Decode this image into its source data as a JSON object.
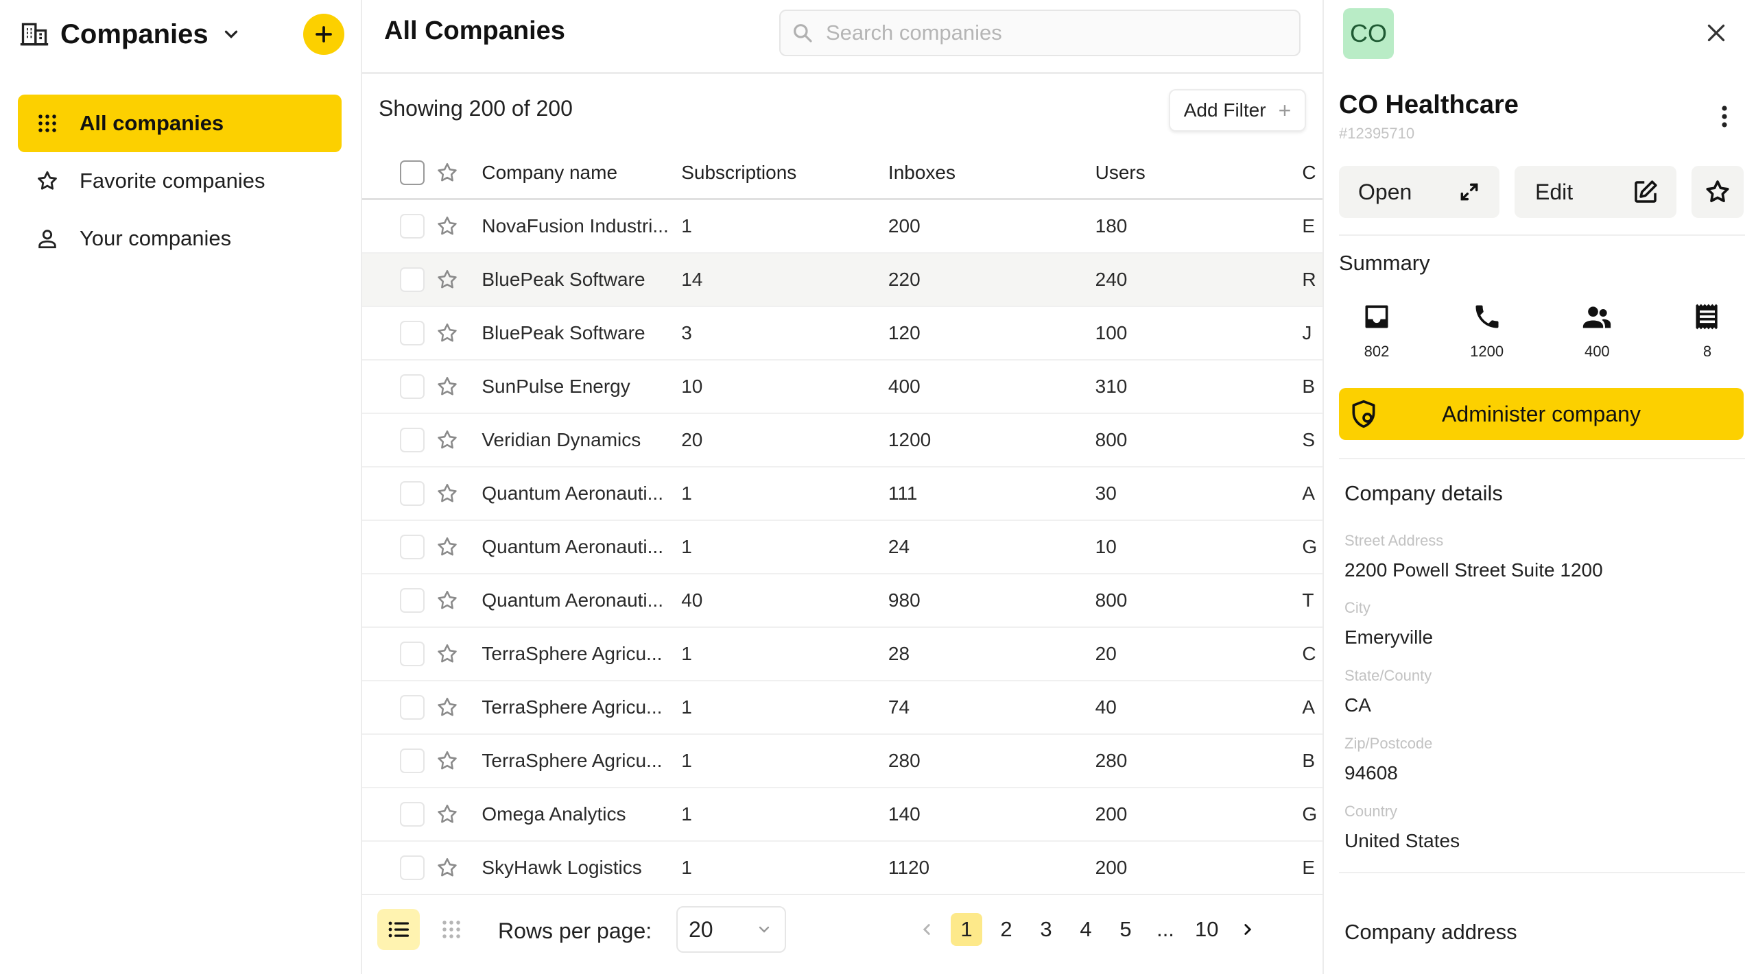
{
  "sidebar": {
    "title": "Companies",
    "nav": [
      {
        "label": "All companies",
        "icon": "apps-grid-icon",
        "active": true
      },
      {
        "label": "Favorite companies",
        "icon": "star-icon",
        "active": false
      },
      {
        "label": "Your companies",
        "icon": "person-icon",
        "active": false
      }
    ]
  },
  "main": {
    "title": "All Companies",
    "search_placeholder": "Search companies",
    "showing": "Showing 200 of 200",
    "add_filter": "Add Filter",
    "columns": {
      "name": "Company name",
      "subscriptions": "Subscriptions",
      "inboxes": "Inboxes",
      "users": "Users",
      "extra": "C"
    },
    "rows": [
      {
        "name": "NovaFusion Industri...",
        "subscriptions": "1",
        "inboxes": "200",
        "users": "180",
        "extra": "E"
      },
      {
        "name": "BluePeak Software",
        "subscriptions": "14",
        "inboxes": "220",
        "users": "240",
        "extra": "R"
      },
      {
        "name": "BluePeak Software",
        "subscriptions": "3",
        "inboxes": "120",
        "users": "100",
        "extra": "J"
      },
      {
        "name": "SunPulse Energy",
        "subscriptions": "10",
        "inboxes": "400",
        "users": "310",
        "extra": "B"
      },
      {
        "name": "Veridian Dynamics",
        "subscriptions": "20",
        "inboxes": "1200",
        "users": "800",
        "extra": "S"
      },
      {
        "name": "Quantum Aeronauti...",
        "subscriptions": "1",
        "inboxes": "111",
        "users": "30",
        "extra": "A"
      },
      {
        "name": "Quantum Aeronauti...",
        "subscriptions": "1",
        "inboxes": "24",
        "users": "10",
        "extra": "G"
      },
      {
        "name": "Quantum Aeronauti...",
        "subscriptions": "40",
        "inboxes": "980",
        "users": "800",
        "extra": "T"
      },
      {
        "name": "TerraSphere Agricu...",
        "subscriptions": "1",
        "inboxes": "28",
        "users": "20",
        "extra": "C"
      },
      {
        "name": "TerraSphere Agricu...",
        "subscriptions": "1",
        "inboxes": "74",
        "users": "40",
        "extra": "A"
      },
      {
        "name": "TerraSphere Agricu...",
        "subscriptions": "1",
        "inboxes": "280",
        "users": "280",
        "extra": "B"
      },
      {
        "name": "Omega Analytics",
        "subscriptions": "1",
        "inboxes": "140",
        "users": "200",
        "extra": "G"
      },
      {
        "name": "SkyHawk Logistics",
        "subscriptions": "1",
        "inboxes": "1120",
        "users": "200",
        "extra": "E"
      }
    ],
    "highlighted_row": 1,
    "footer": {
      "rows_per_page_label": "Rows per page:",
      "rows_per_page_value": "20",
      "pages": [
        "1",
        "2",
        "3",
        "4",
        "5",
        "...",
        "10"
      ],
      "current_page": "1"
    }
  },
  "panel": {
    "avatar": "CO",
    "name": "CO Healthcare",
    "id": "#12395710",
    "open_label": "Open",
    "edit_label": "Edit",
    "summary_title": "Summary",
    "stats": [
      {
        "icon": "inbox-icon",
        "value": "802"
      },
      {
        "icon": "phone-icon",
        "value": "1200"
      },
      {
        "icon": "users-icon",
        "value": "400"
      },
      {
        "icon": "receipt-icon",
        "value": "8"
      }
    ],
    "administer_label": "Administer company",
    "details_title": "Company details",
    "fields": [
      {
        "label": "Street Address",
        "value": "2200 Powell Street Suite 1200"
      },
      {
        "label": "City",
        "value": "Emeryville"
      },
      {
        "label": "State/County",
        "value": "CA"
      },
      {
        "label": "Zip/Postcode",
        "value": "94608"
      },
      {
        "label": "Country",
        "value": "United States"
      }
    ],
    "address_title": "Company address"
  },
  "colors": {
    "accent": "#fcd000",
    "accent_soft": "#fde98a",
    "avatar_bg": "#b9ecc6"
  }
}
